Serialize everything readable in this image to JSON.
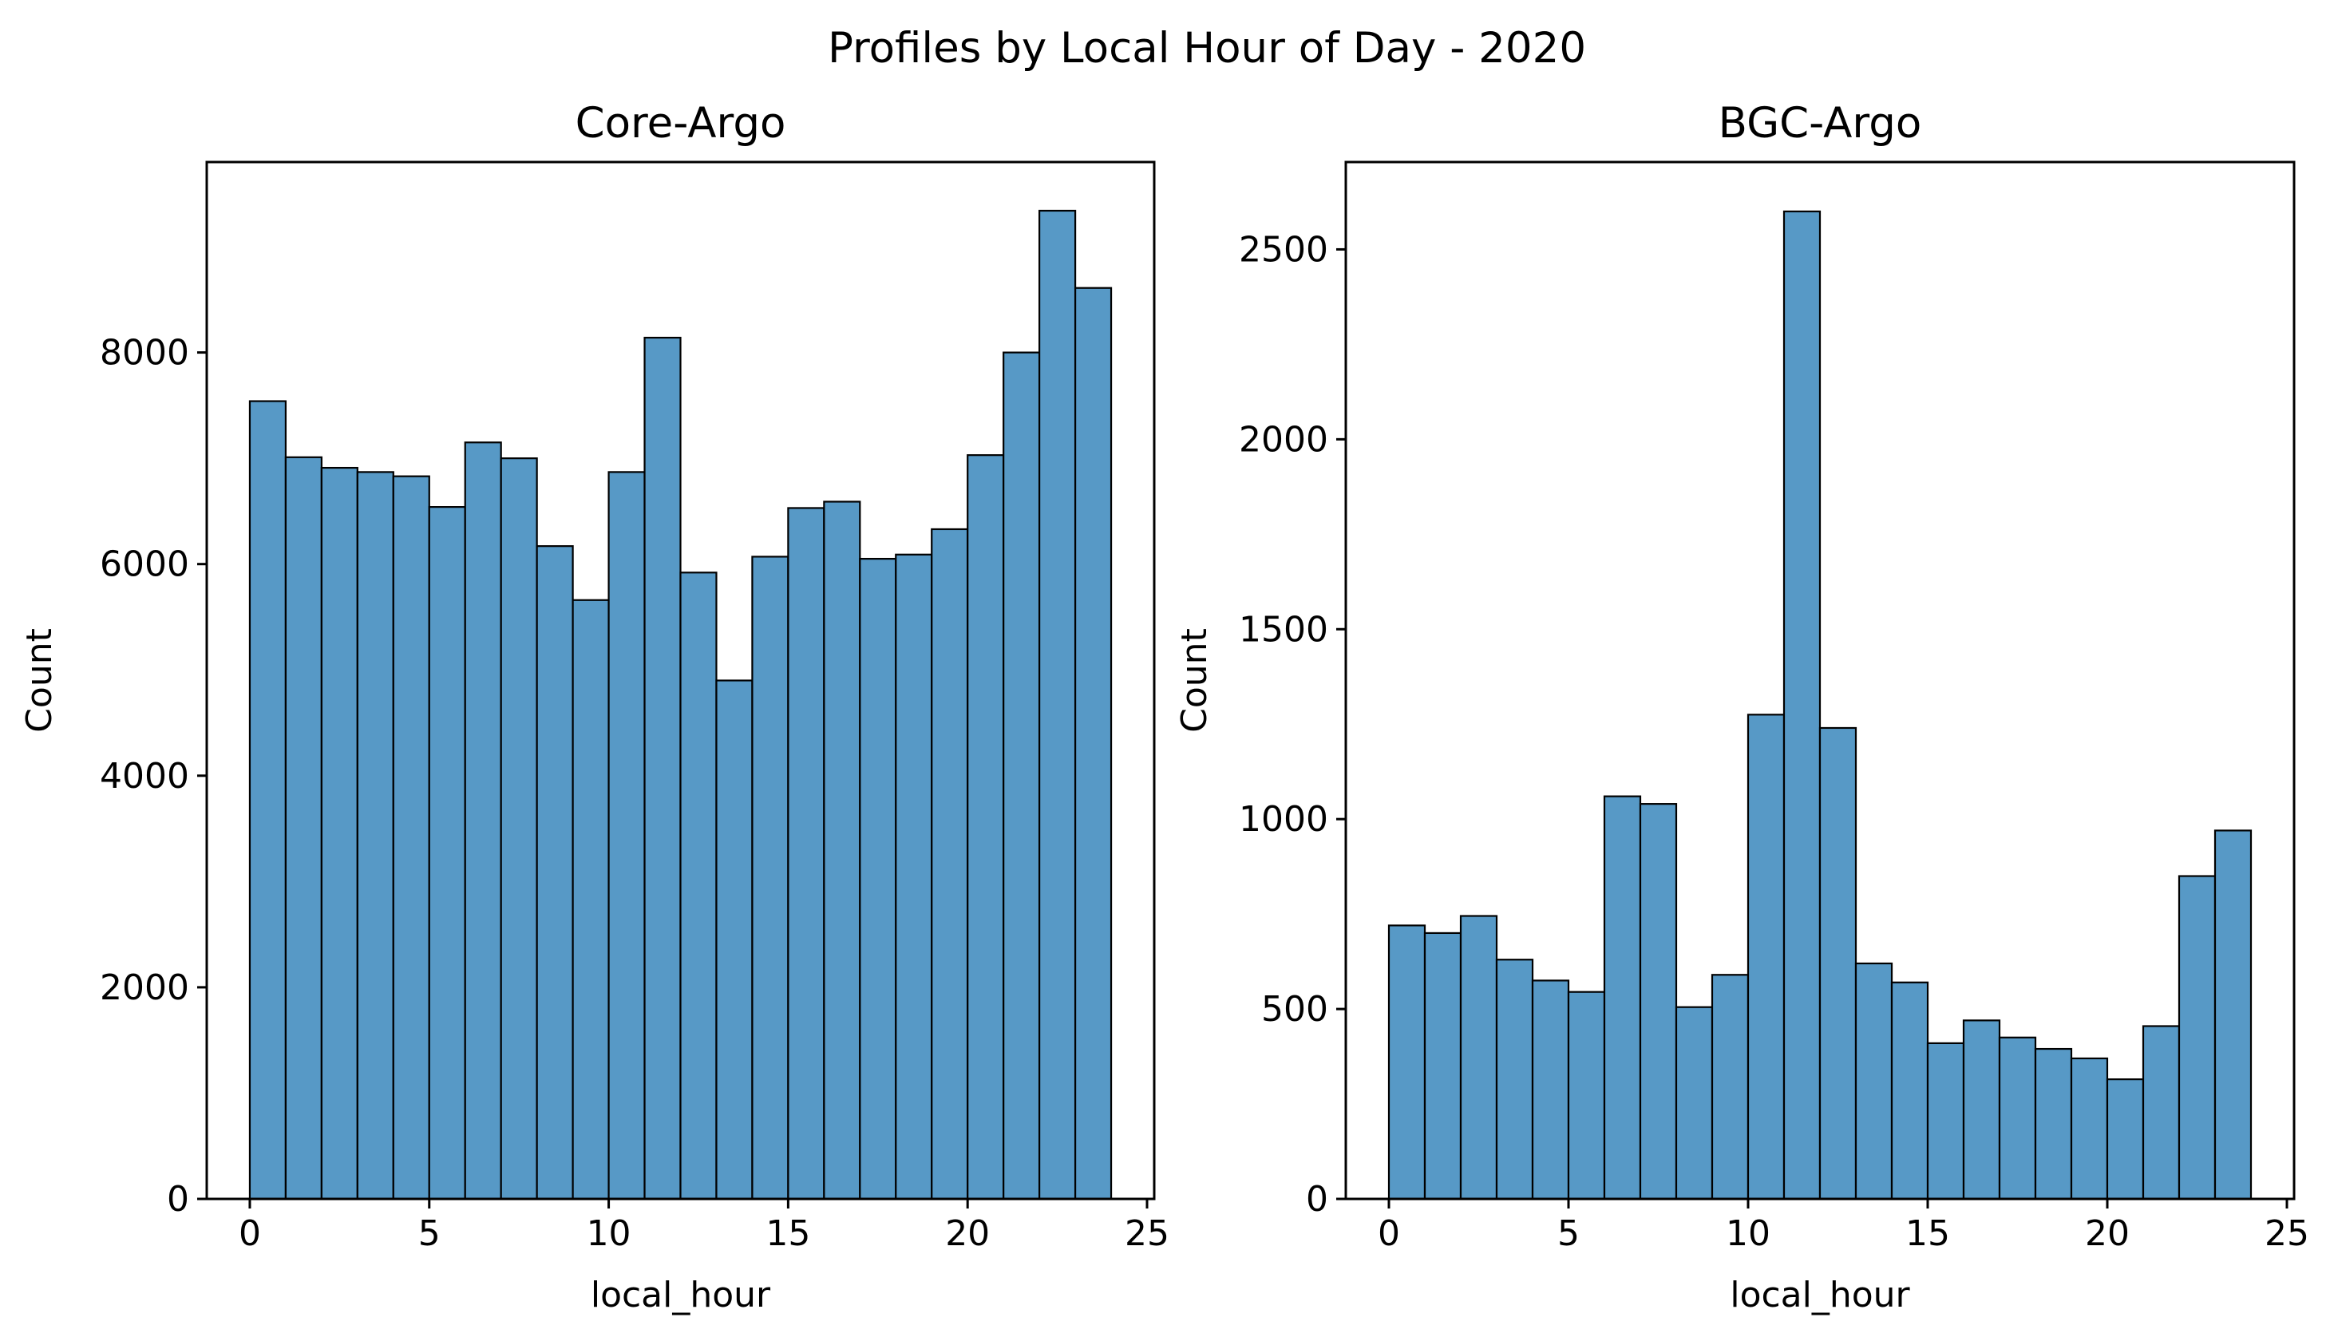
{
  "figure": {
    "title": "Profiles by Local Hour of Day - 2020",
    "colors": {
      "bar_fill": "#5799c6",
      "bar_edge": "#000000",
      "background": "#ffffff"
    }
  },
  "chart_data": [
    {
      "type": "bar",
      "title": "Core-Argo",
      "xlabel": "local_hour",
      "ylabel": "Count",
      "bin_edges": [
        0,
        1,
        2,
        3,
        4,
        5,
        6,
        7,
        8,
        9,
        10,
        11,
        12,
        13,
        14,
        15,
        16,
        17,
        18,
        19,
        20,
        21,
        22,
        23,
        24
      ],
      "values": [
        7540,
        7010,
        6910,
        6870,
        6830,
        6540,
        7150,
        7000,
        6170,
        5660,
        6870,
        8140,
        5920,
        4900,
        6070,
        6530,
        6590,
        6050,
        6090,
        6330,
        7030,
        8000,
        9340,
        8610
      ],
      "xlim": [
        -1.2,
        25.2
      ],
      "ylim": [
        0,
        9800
      ],
      "xticks": [
        0,
        5,
        10,
        15,
        20,
        25
      ],
      "xtick_labels": [
        "0",
        "5",
        "10",
        "15",
        "20",
        "25"
      ],
      "yticks": [
        0,
        2000,
        4000,
        6000,
        8000
      ],
      "ytick_labels": [
        "0",
        "2000",
        "4000",
        "6000",
        "8000"
      ],
      "grid": false
    },
    {
      "type": "bar",
      "title": "BGC-Argo",
      "xlabel": "local_hour",
      "ylabel": "Count",
      "bin_edges": [
        0,
        1,
        2,
        3,
        4,
        5,
        6,
        7,
        8,
        9,
        10,
        11,
        12,
        13,
        14,
        15,
        16,
        17,
        18,
        19,
        20,
        21,
        22,
        23,
        24
      ],
      "values": [
        720,
        700,
        745,
        630,
        575,
        545,
        1060,
        1040,
        505,
        590,
        1275,
        2600,
        1240,
        620,
        570,
        410,
        470,
        425,
        395,
        370,
        315,
        455,
        850,
        970
      ],
      "xlim": [
        -1.2,
        25.2
      ],
      "ylim": [
        0,
        2730
      ],
      "xticks": [
        0,
        5,
        10,
        15,
        20,
        25
      ],
      "xtick_labels": [
        "0",
        "5",
        "10",
        "15",
        "20",
        "25"
      ],
      "yticks": [
        0,
        500,
        1000,
        1500,
        2000,
        2500
      ],
      "ytick_labels": [
        "0",
        "500",
        "1000",
        "1500",
        "2000",
        "2500"
      ],
      "grid": false
    }
  ]
}
